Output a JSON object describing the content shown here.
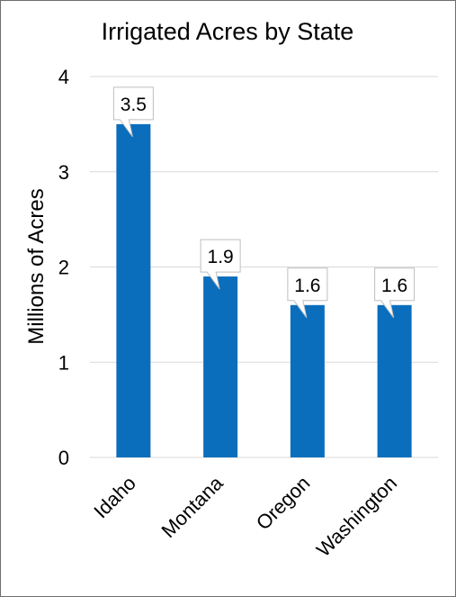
{
  "chart_data": {
    "type": "bar",
    "title": "Irrigated Acres by State",
    "ylabel": "Millions of Acres",
    "xlabel": "",
    "categories": [
      "Idaho",
      "Montana",
      "Oregon",
      "Washington"
    ],
    "values": [
      3.5,
      1.9,
      1.6,
      1.6
    ],
    "data_labels": [
      "3.5",
      "1.9",
      "1.6",
      "1.6"
    ],
    "ylim": [
      0,
      4
    ],
    "y_ticks": [
      "0",
      "1",
      "2",
      "3",
      "4"
    ],
    "grid": true,
    "legend": "none",
    "bar_color": "#0a6ebd",
    "gridline_color": "#d9d9d9",
    "callout_border_color": "#bfbfbf"
  }
}
